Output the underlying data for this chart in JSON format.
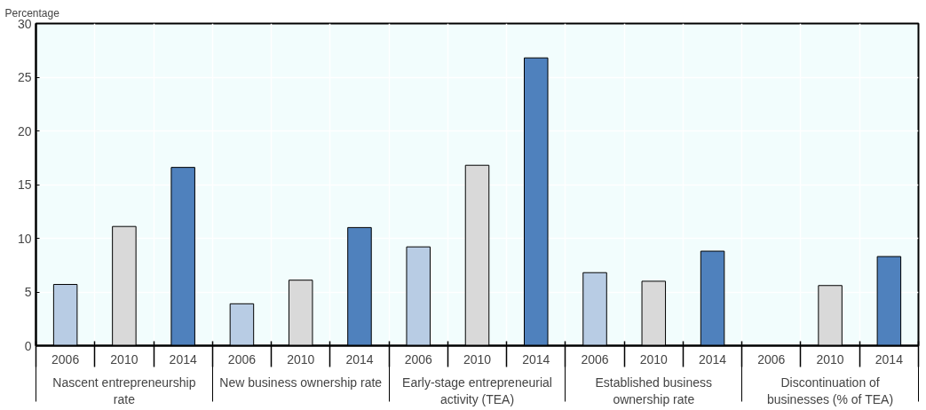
{
  "chart_data": {
    "type": "bar",
    "ylabel": "Percentage",
    "categories": [
      "Nascent entrepreneurship rate",
      "New business ownership rate",
      "Early-stage entrepreneurial activity (TEA)",
      "Established business ownership rate",
      "Discontinuation of businesses (% of TEA)"
    ],
    "series": [
      {
        "name": "2006",
        "color": "#b8cce4",
        "values": [
          5.7,
          3.9,
          9.2,
          6.8,
          null
        ]
      },
      {
        "name": "2010",
        "color": "#d9d9d9",
        "values": [
          11.1,
          6.1,
          16.8,
          6.0,
          5.6
        ]
      },
      {
        "name": "2014",
        "color": "#4f81bd",
        "values": [
          16.6,
          11.0,
          26.8,
          8.8,
          8.3
        ]
      }
    ],
    "ylim": [
      0,
      30
    ],
    "yticks": [
      0,
      5,
      10,
      15,
      20,
      25,
      30
    ],
    "grid": true,
    "legend": "bottom"
  }
}
